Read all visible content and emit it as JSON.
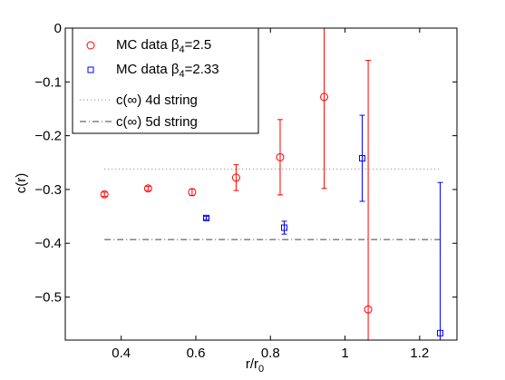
{
  "chart_data": {
    "type": "scatter",
    "title": "",
    "xlabel": "r/r",
    "xlabel_sub": "0",
    "ylabel": "c(r)",
    "xlim": [
      0.25,
      1.3
    ],
    "ylim": [
      -0.58,
      0.0
    ],
    "xticks": [
      0.4,
      0.6,
      0.8,
      1.0,
      1.2
    ],
    "xtick_labels": [
      "0.4",
      "0.6",
      "0.8",
      "1",
      "1.2"
    ],
    "yticks": [
      0.0,
      -0.1,
      -0.2,
      -0.3,
      -0.4,
      -0.5
    ],
    "ytick_labels": [
      "0",
      "−0.1",
      "−0.2",
      "−0.3",
      "−0.4",
      "−0.5"
    ],
    "grid": false,
    "legend_position": "top-left",
    "series": [
      {
        "name": "MC data β",
        "name_sub": "4",
        "name_suffix": "=2.5",
        "marker": "circle",
        "color": "#ff0000",
        "x": [
          0.355,
          0.472,
          0.59,
          0.708,
          0.826,
          0.944,
          1.062
        ],
        "y": [
          -0.309,
          -0.298,
          -0.305,
          -0.278,
          -0.24,
          -0.128,
          -0.523
        ],
        "err": [
          0.004,
          0.004,
          0.006,
          0.024,
          0.07,
          0.17,
          0.463
        ]
      },
      {
        "name": "MC data β",
        "name_sub": "4",
        "name_suffix": "=2.33",
        "marker": "square",
        "color": "#0000ff",
        "x": [
          0.628,
          0.837,
          1.046,
          1.255
        ],
        "y": [
          -0.353,
          -0.371,
          -0.242,
          -0.567
        ],
        "err": [
          0.003,
          0.012,
          0.08,
          0.28
        ]
      }
    ],
    "reference_lines": [
      {
        "name": "c(∞) 4d string",
        "style": "dotted",
        "y": -0.262,
        "x_range": [
          0.355,
          1.255
        ],
        "color": "#808080"
      },
      {
        "name": "c(∞) 5d string",
        "style": "dashdot",
        "y": -0.393,
        "x_range": [
          0.355,
          1.255
        ],
        "color": "#404040"
      }
    ]
  }
}
